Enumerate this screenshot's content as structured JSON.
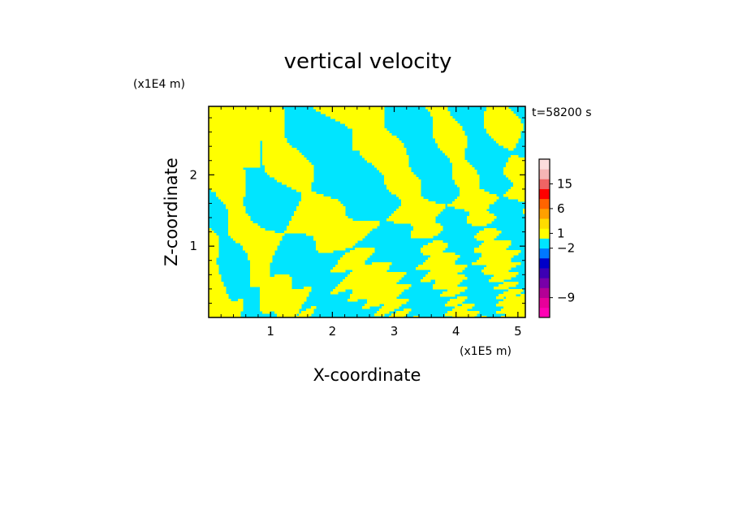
{
  "chart_data": {
    "type": "heatmap",
    "title": "vertical velocity",
    "xlabel": "X-coordinate",
    "ylabel": "Z-coordinate",
    "x_multiplier": "(x1E5 m)",
    "y_multiplier": "(x1E4 m)",
    "time_label": "t=58200 s",
    "xlim": [
      0,
      5.12
    ],
    "ylim": [
      0,
      2.96
    ],
    "x_ticks": [
      {
        "value": 1,
        "label": "1"
      },
      {
        "value": 2,
        "label": "2"
      },
      {
        "value": 3,
        "label": "3"
      },
      {
        "value": 4,
        "label": "4"
      },
      {
        "value": 5,
        "label": "5"
      }
    ],
    "y_ticks": [
      {
        "value": 1,
        "label": "1"
      },
      {
        "value": 2,
        "label": "2"
      }
    ],
    "colors": {
      "positive_small": "#ffff00",
      "negative_small": "#00e5ff",
      "background": "#ffffff"
    },
    "colorbar": {
      "levels": [
        {
          "color": "#ff00b4"
        },
        {
          "color": "#e8009a"
        },
        {
          "color": "#b40096"
        },
        {
          "color": "#7800a8"
        },
        {
          "color": "#3c00b4"
        },
        {
          "color": "#0000c8"
        },
        {
          "color": "#0078ff"
        },
        {
          "color": "#00e5ff"
        },
        {
          "color": "#ffff00"
        },
        {
          "color": "#ffdc00"
        },
        {
          "color": "#ffa000"
        },
        {
          "color": "#ff6400"
        },
        {
          "color": "#ff0000"
        },
        {
          "color": "#f06464"
        },
        {
          "color": "#f5b4b4"
        },
        {
          "color": "#fcdcdc"
        }
      ],
      "labels": [
        {
          "value": "15",
          "level": 13.5
        },
        {
          "value": "6",
          "level": 11
        },
        {
          "value": "1",
          "level": 8.5
        },
        {
          "value": "−2",
          "level": 7
        },
        {
          "value": "−9",
          "level": 2
        }
      ]
    }
  }
}
